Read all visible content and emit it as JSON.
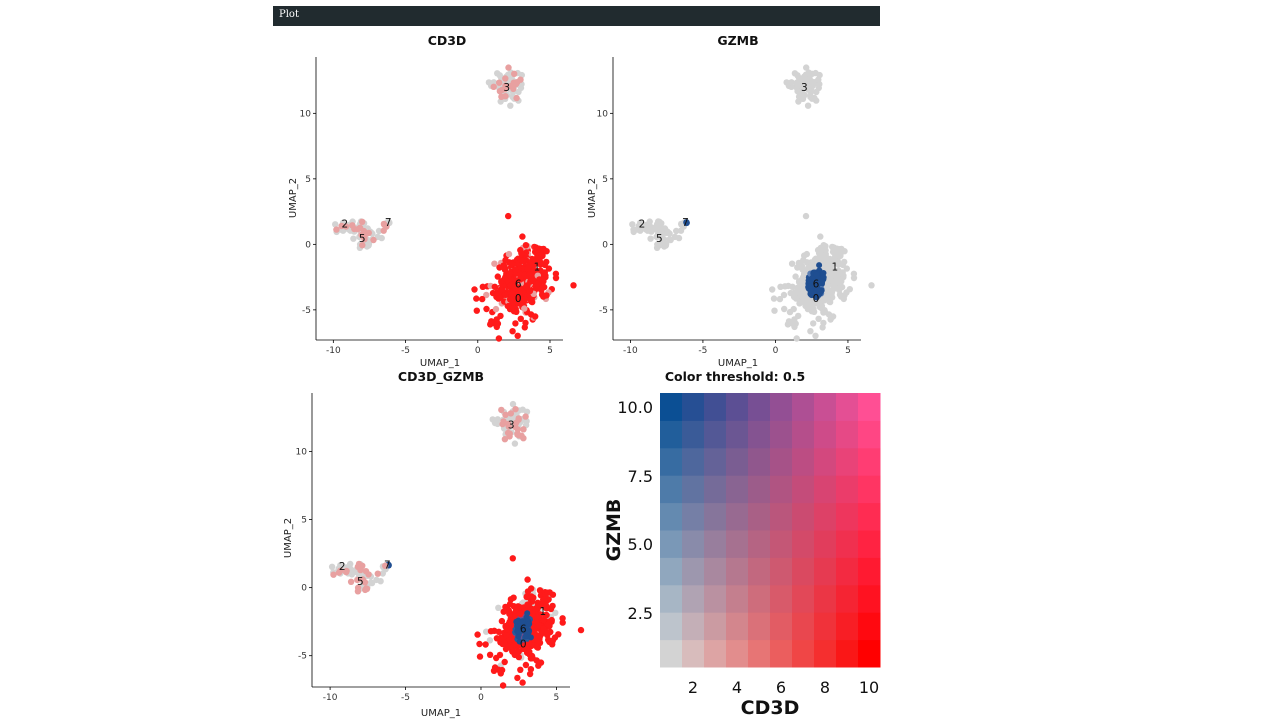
{
  "window": {
    "title": "Plot"
  },
  "colors": {
    "gray": "#d3d3d3",
    "red": "#ff0000",
    "blue": "#1f4e91",
    "topbar": "#212b2f"
  },
  "panels": [
    {
      "id": "cd3d",
      "title": "CD3D",
      "xlabel": "UMAP_1",
      "ylabel": "UMAP_2",
      "cluster_labels": [
        "3",
        "2",
        "5",
        "7",
        "1",
        "6",
        "0"
      ]
    },
    {
      "id": "gzmb",
      "title": "GZMB",
      "xlabel": "UMAP_1",
      "ylabel": "UMAP_2",
      "cluster_labels": [
        "3",
        "2",
        "5",
        "7",
        "1",
        "6",
        "0"
      ]
    },
    {
      "id": "combo",
      "title": "CD3D_GZMB",
      "xlabel": "UMAP_1",
      "ylabel": "UMAP_2",
      "cluster_labels": [
        "3",
        "2",
        "5",
        "7",
        "1",
        "6",
        "0"
      ]
    }
  ],
  "legend": {
    "title": "Color threshold: 0.5",
    "xlabel": "CD3D",
    "ylabel": "GZMB",
    "xticks": [
      "2",
      "4",
      "6",
      "8",
      "10"
    ],
    "yticks": [
      "10.0",
      "7.5",
      "5.0",
      "2.5"
    ]
  },
  "chart_data": [
    {
      "type": "scatter",
      "title": "CD3D",
      "xlabel": "UMAP_1",
      "ylabel": "UMAP_2",
      "xticks": [
        -10,
        -5,
        0,
        5
      ],
      "yticks": [
        -5,
        0,
        5,
        10
      ],
      "xlim": [
        -11.2,
        5.9
      ],
      "ylim": [
        -7.3,
        14.3
      ],
      "clusters": [
        {
          "label": "3",
          "x": 2.0,
          "y": 12.0,
          "color": "gray with light red"
        },
        {
          "label": "2",
          "x": -9.2,
          "y": 1.6,
          "color": "gray with light red"
        },
        {
          "label": "5",
          "x": -8.0,
          "y": 0.5,
          "color": "gray with light red"
        },
        {
          "label": "7",
          "x": -6.2,
          "y": 1.7,
          "color": "gray"
        },
        {
          "label": "1",
          "x": 3.8,
          "y": -2.0,
          "color": "red"
        },
        {
          "label": "6",
          "x": 2.8,
          "y": -3.0,
          "color": "red"
        },
        {
          "label": "0",
          "x": 2.8,
          "y": -4.1,
          "color": "red"
        }
      ]
    },
    {
      "type": "scatter",
      "title": "GZMB",
      "xlabel": "UMAP_1",
      "ylabel": "UMAP_2",
      "xticks": [
        -10,
        -5,
        0,
        5
      ],
      "yticks": [
        -5,
        0,
        5,
        10
      ],
      "xlim": [
        -11.2,
        5.9
      ],
      "ylim": [
        -7.3,
        14.3
      ],
      "clusters": [
        {
          "label": "3",
          "x": 2.0,
          "y": 12.0,
          "color": "gray"
        },
        {
          "label": "2",
          "x": -9.2,
          "y": 1.6,
          "color": "gray"
        },
        {
          "label": "5",
          "x": -8.0,
          "y": 0.5,
          "color": "gray"
        },
        {
          "label": "7",
          "x": -6.2,
          "y": 1.7,
          "color": "gray with one blue cell"
        },
        {
          "label": "1",
          "x": 3.8,
          "y": -2.0,
          "color": "gray"
        },
        {
          "label": "6",
          "x": 2.8,
          "y": -3.0,
          "color": "blue"
        },
        {
          "label": "0",
          "x": 2.8,
          "y": -4.1,
          "color": "gray"
        }
      ]
    },
    {
      "type": "scatter",
      "title": "CD3D_GZMB",
      "xlabel": "UMAP_1",
      "ylabel": "UMAP_2",
      "xticks": [
        -10,
        -5,
        0,
        5
      ],
      "yticks": [
        -5,
        0,
        5,
        10
      ],
      "xlim": [
        -11.2,
        5.9
      ],
      "ylim": [
        -7.3,
        14.3
      ],
      "clusters": [
        {
          "label": "3",
          "x": 2.0,
          "y": 12.0,
          "color": "gray with light red"
        },
        {
          "label": "2",
          "x": -9.2,
          "y": 1.6,
          "color": "gray with light red"
        },
        {
          "label": "5",
          "x": -8.0,
          "y": 0.5,
          "color": "gray with light red"
        },
        {
          "label": "7",
          "x": -6.2,
          "y": 1.7,
          "color": "gray with one blue cell"
        },
        {
          "label": "1",
          "x": 3.8,
          "y": -2.0,
          "color": "red"
        },
        {
          "label": "6",
          "x": 2.8,
          "y": -3.0,
          "color": "blue"
        },
        {
          "label": "0",
          "x": 2.8,
          "y": -4.1,
          "color": "red"
        }
      ]
    },
    {
      "type": "heatmap",
      "title": "Color threshold: 0.5",
      "xlabel": "CD3D",
      "ylabel": "GZMB",
      "xlim": [
        0,
        10
      ],
      "ylim": [
        0,
        10
      ],
      "xticks": [
        2,
        4,
        6,
        8,
        10
      ],
      "yticks": [
        2.5,
        5.0,
        7.5,
        10.0
      ],
      "grid": [
        10,
        10
      ],
      "corner_colors": {
        "low_low": "#d3d3d3",
        "high_cd3d": "#ff0000",
        "high_gzmb": "#0b4f94",
        "high_both": "#ff4f94"
      }
    }
  ]
}
